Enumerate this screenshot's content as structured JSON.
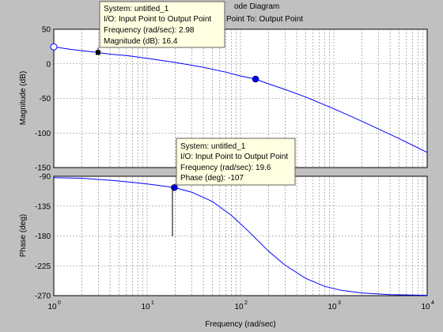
{
  "title_fragment": "ode Diagram",
  "subtitle_fragment": "Point  To: Output Point",
  "xlabel": "Frequency  (rad/sec)",
  "ylabel_mag": "Magnitude (dB)",
  "ylabel_phase": "Phase (deg)",
  "colors": {
    "background": "#c0c0c0",
    "axes": "#ffffff",
    "line": "#0000ff",
    "grid": "#7f7f7f",
    "tooltip": "#ffffe1"
  },
  "tooltip_mag": {
    "system": "System: untitled_1",
    "io": "I/O: Input Point to Output Point",
    "freq": "Frequency (rad/sec): 2.98",
    "value": "Magnitude (dB): 16.4"
  },
  "tooltip_phase": {
    "system": "System: untitled_1",
    "io": "I/O: Input Point to Output Point",
    "freq": "Frequency (rad/sec): 19.6",
    "value": "Phase (deg): -107"
  },
  "chart_data": [
    {
      "type": "line",
      "panel": "magnitude",
      "xscale": "log",
      "xlim": [
        1,
        10000
      ],
      "ylim": [
        -150,
        50
      ],
      "yticks": [
        50,
        0,
        -50,
        -100,
        -150
      ],
      "xticks": [
        1,
        10,
        100,
        1000,
        10000
      ],
      "xtick_labels": [
        [
          "10",
          "0"
        ],
        [
          "10",
          "1"
        ],
        [
          "10",
          "2"
        ],
        [
          "10",
          "3"
        ],
        [
          "10",
          "4"
        ]
      ],
      "grid": true,
      "series": [
        {
          "x": [
            1,
            1.5,
            2,
            2.98,
            4,
            6,
            10,
            20,
            40,
            70,
            100,
            145,
            200,
            300,
            500,
            1000,
            2000,
            5000,
            10000
          ],
          "y": [
            24.5,
            21,
            19,
            16.4,
            14,
            12,
            8,
            2,
            -5,
            -12,
            -17.5,
            -22,
            -29,
            -37,
            -48,
            -65,
            -83,
            -108,
            -128
          ]
        }
      ],
      "markers": [
        {
          "x": 1,
          "y": 24.5,
          "style": "open-circle"
        },
        {
          "x": 2.98,
          "y": 16.4,
          "style": "square"
        },
        {
          "x": 145,
          "y": -22,
          "style": "filled-circle"
        }
      ]
    },
    {
      "type": "line",
      "panel": "phase",
      "xscale": "log",
      "xlim": [
        1,
        10000
      ],
      "ylim": [
        -270,
        -90
      ],
      "yticks": [
        -90,
        -135,
        -180,
        -225,
        -270
      ],
      "xticks": [
        1,
        10,
        100,
        1000,
        10000
      ],
      "xtick_labels": [
        [
          "10",
          "0"
        ],
        [
          "10",
          "1"
        ],
        [
          "10",
          "2"
        ],
        [
          "10",
          "3"
        ],
        [
          "10",
          "4"
        ]
      ],
      "grid": true,
      "series": [
        {
          "x": [
            1,
            2,
            4,
            8,
            12,
            19.6,
            30,
            50,
            80,
            120,
            200,
            300,
            500,
            800,
            1200,
            2000,
            4000,
            10000
          ],
          "y": [
            -92,
            -93,
            -96,
            -100,
            -103,
            -107,
            -114,
            -128,
            -149,
            -172,
            -203,
            -224,
            -244,
            -256,
            -262,
            -266,
            -268.5,
            -269.5
          ]
        }
      ],
      "markers": [
        {
          "x": 19.6,
          "y": -107,
          "style": "filled-circle"
        }
      ]
    }
  ]
}
